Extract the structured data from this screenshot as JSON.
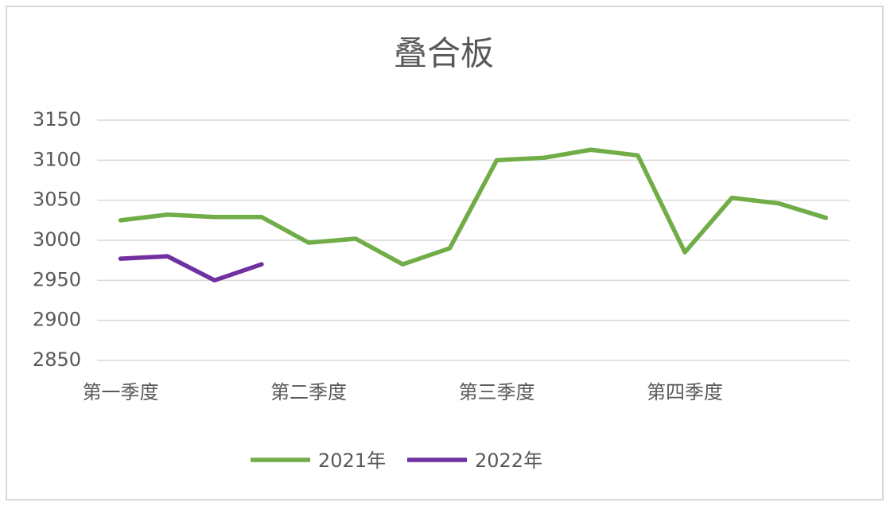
{
  "chart_data": {
    "type": "line",
    "title": "叠合板",
    "categories": [
      "第一季度",
      null,
      null,
      null,
      "第二季度",
      null,
      null,
      null,
      "第三季度",
      null,
      null,
      null,
      "第四季度",
      null,
      null,
      null
    ],
    "series": [
      {
        "name": "2021年",
        "color": "#70ad47",
        "values": [
          3025,
          3032,
          3029,
          3029,
          2997,
          3002,
          2970,
          2990,
          3100,
          3103,
          3113,
          3106,
          2985,
          3053,
          3046,
          3028
        ]
      },
      {
        "name": "2022年",
        "color": "#7030a0",
        "values": [
          2977,
          2980,
          2950,
          2970,
          null,
          null,
          null,
          null,
          null,
          null,
          null,
          null,
          null,
          null,
          null,
          null
        ]
      }
    ],
    "ylim": [
      2850,
      3150
    ],
    "yticks": [
      2850,
      2900,
      2950,
      3000,
      3050,
      3100,
      3150
    ],
    "grid": true,
    "legend": "bottom"
  }
}
